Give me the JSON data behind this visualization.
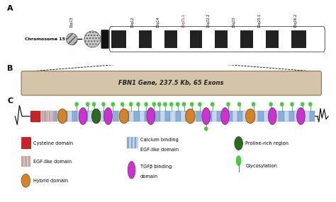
{
  "band_labels": [
    "15p13",
    "15q12",
    "15q14",
    "15q21.1",
    "15q22.2",
    "15q23",
    "15q25.1",
    "15q26.2"
  ],
  "band_label_highlight": "15q21.1",
  "band_label_color_normal": "#000000",
  "band_label_color_highlight": "#cc0000",
  "background_color": "#ffffff",
  "gene_box_color": "#d4c5a9",
  "gene_box_edge": "#8B7355",
  "chrom_label": "Chromosome 15",
  "gene_label": "FBN1 Gene, 237.5 Kb, 65 Exons"
}
